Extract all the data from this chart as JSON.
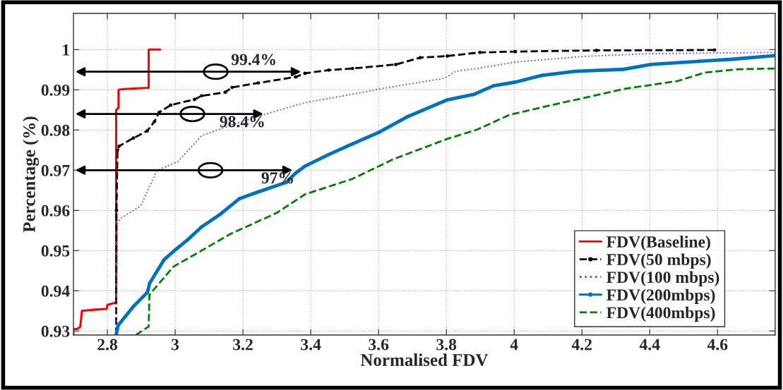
{
  "chart_data": {
    "type": "line",
    "xlabel": "Normalised FDV",
    "ylabel": "Percentage (%)",
    "xlim": [
      2.7,
      4.77
    ],
    "xticks": [
      2.8,
      3,
      3.2,
      3.4,
      3.6,
      3.8,
      4,
      4.2,
      4.4,
      4.6
    ],
    "ylim": [
      0.929,
      1.009
    ],
    "yticks": [
      0.93,
      0.94,
      0.95,
      0.96,
      0.97,
      0.98,
      0.99,
      1
    ],
    "grid": true,
    "legend": "bottom right",
    "series": [
      {
        "name": "FDV(Baseline)",
        "color": "#ff0000",
        "line_style": "solid",
        "marker": "none",
        "x": [
          2.7,
          2.7,
          2.71,
          2.72,
          2.725,
          2.76,
          2.798,
          2.8,
          2.821,
          2.826,
          2.826,
          2.833,
          2.833,
          2.85,
          2.919,
          2.922,
          2.922,
          2.956
        ],
        "values": [
          0.929,
          0.9305,
          0.9305,
          0.931,
          0.935,
          0.9353,
          0.9355,
          0.9365,
          0.937,
          0.937,
          0.985,
          0.9855,
          0.99,
          0.9902,
          0.9905,
          0.9905,
          1.0,
          1.0
        ]
      },
      {
        "name": "FDV(50 mbps)",
        "color": "#000000",
        "line_style": "dashed",
        "marker": "circle",
        "x": [
          2.826,
          2.827,
          2.83,
          2.835,
          2.877,
          2.918,
          2.939,
          2.953,
          2.987,
          3.057,
          3.078,
          3.148,
          3.168,
          3.245,
          3.356,
          3.383,
          3.453,
          3.523,
          3.651,
          3.723,
          3.803,
          3.899,
          4.003,
          4.243,
          4.591
        ],
        "values": [
          0.929,
          0.96,
          0.975,
          0.976,
          0.978,
          0.9798,
          0.9821,
          0.9844,
          0.9862,
          0.9876,
          0.9885,
          0.9894,
          0.9906,
          0.9917,
          0.9932,
          0.9941,
          0.9949,
          0.9953,
          0.9963,
          0.998,
          0.9984,
          0.9993,
          0.9995,
          0.9998,
          0.9999
        ]
      },
      {
        "name": "FDV(100 mbps)",
        "color": "#4f4fff",
        "line_style": "dotted",
        "marker": "none",
        "x": [
          2.826,
          2.83,
          2.842,
          2.898,
          2.946,
          3.009,
          3.078,
          3.175,
          3.265,
          3.383,
          3.523,
          3.603,
          3.731,
          3.795,
          3.827,
          3.891,
          4.003,
          4.203,
          4.404,
          4.768
        ],
        "values": [
          0.929,
          0.957,
          0.9582,
          0.9611,
          0.9699,
          0.9722,
          0.9786,
          0.9815,
          0.9839,
          0.9868,
          0.9889,
          0.9902,
          0.992,
          0.9929,
          0.9946,
          0.9953,
          0.9969,
          0.9983,
          0.999,
          0.9993
        ]
      },
      {
        "name": "FDV(200mbps)",
        "color": "#0072bd",
        "line_style": "solid",
        "marker": "circle",
        "x": [
          2.826,
          2.832,
          2.877,
          2.918,
          2.925,
          2.967,
          2.995,
          3.037,
          3.078,
          3.134,
          3.189,
          3.245,
          3.328,
          3.356,
          3.383,
          3.453,
          3.522,
          3.603,
          3.683,
          3.803,
          3.883,
          3.939,
          4.003,
          4.083,
          4.179,
          4.323,
          4.403,
          4.547,
          4.643,
          4.768
        ],
        "values": [
          0.929,
          0.9314,
          0.9361,
          0.9396,
          0.9419,
          0.9477,
          0.9498,
          0.9527,
          0.9559,
          0.9591,
          0.9629,
          0.9646,
          0.967,
          0.9693,
          0.971,
          0.9739,
          0.9765,
          0.9795,
          0.9832,
          0.9875,
          0.9889,
          0.991,
          0.9919,
          0.9936,
          0.9946,
          0.9951,
          0.9963,
          0.9971,
          0.9976,
          0.9985
        ]
      },
      {
        "name": "FDV(400mbps)",
        "color": "#008000",
        "line_style": "dashed",
        "marker": "none",
        "x": [
          2.884,
          2.922,
          2.924,
          2.995,
          3.078,
          3.162,
          3.217,
          3.3,
          3.383,
          3.522,
          3.643,
          3.803,
          3.891,
          3.987,
          4.147,
          4.203,
          4.323,
          4.483,
          4.563,
          4.659,
          4.768
        ],
        "values": [
          0.929,
          0.9311,
          0.939,
          0.946,
          0.95,
          0.9541,
          0.9562,
          0.9594,
          0.964,
          0.9678,
          0.9727,
          0.9778,
          0.9801,
          0.9838,
          0.9869,
          0.9879,
          0.9902,
          0.9922,
          0.9943,
          0.9951,
          0.9953
        ]
      }
    ],
    "annotations": [
      {
        "text": "99.4%",
        "x": 3.377,
        "y": 0.9945
      },
      {
        "text": "98.4%",
        "x": 3.266,
        "y": 0.984
      },
      {
        "text": "97%",
        "x": 3.352,
        "y": 0.97
      }
    ]
  }
}
